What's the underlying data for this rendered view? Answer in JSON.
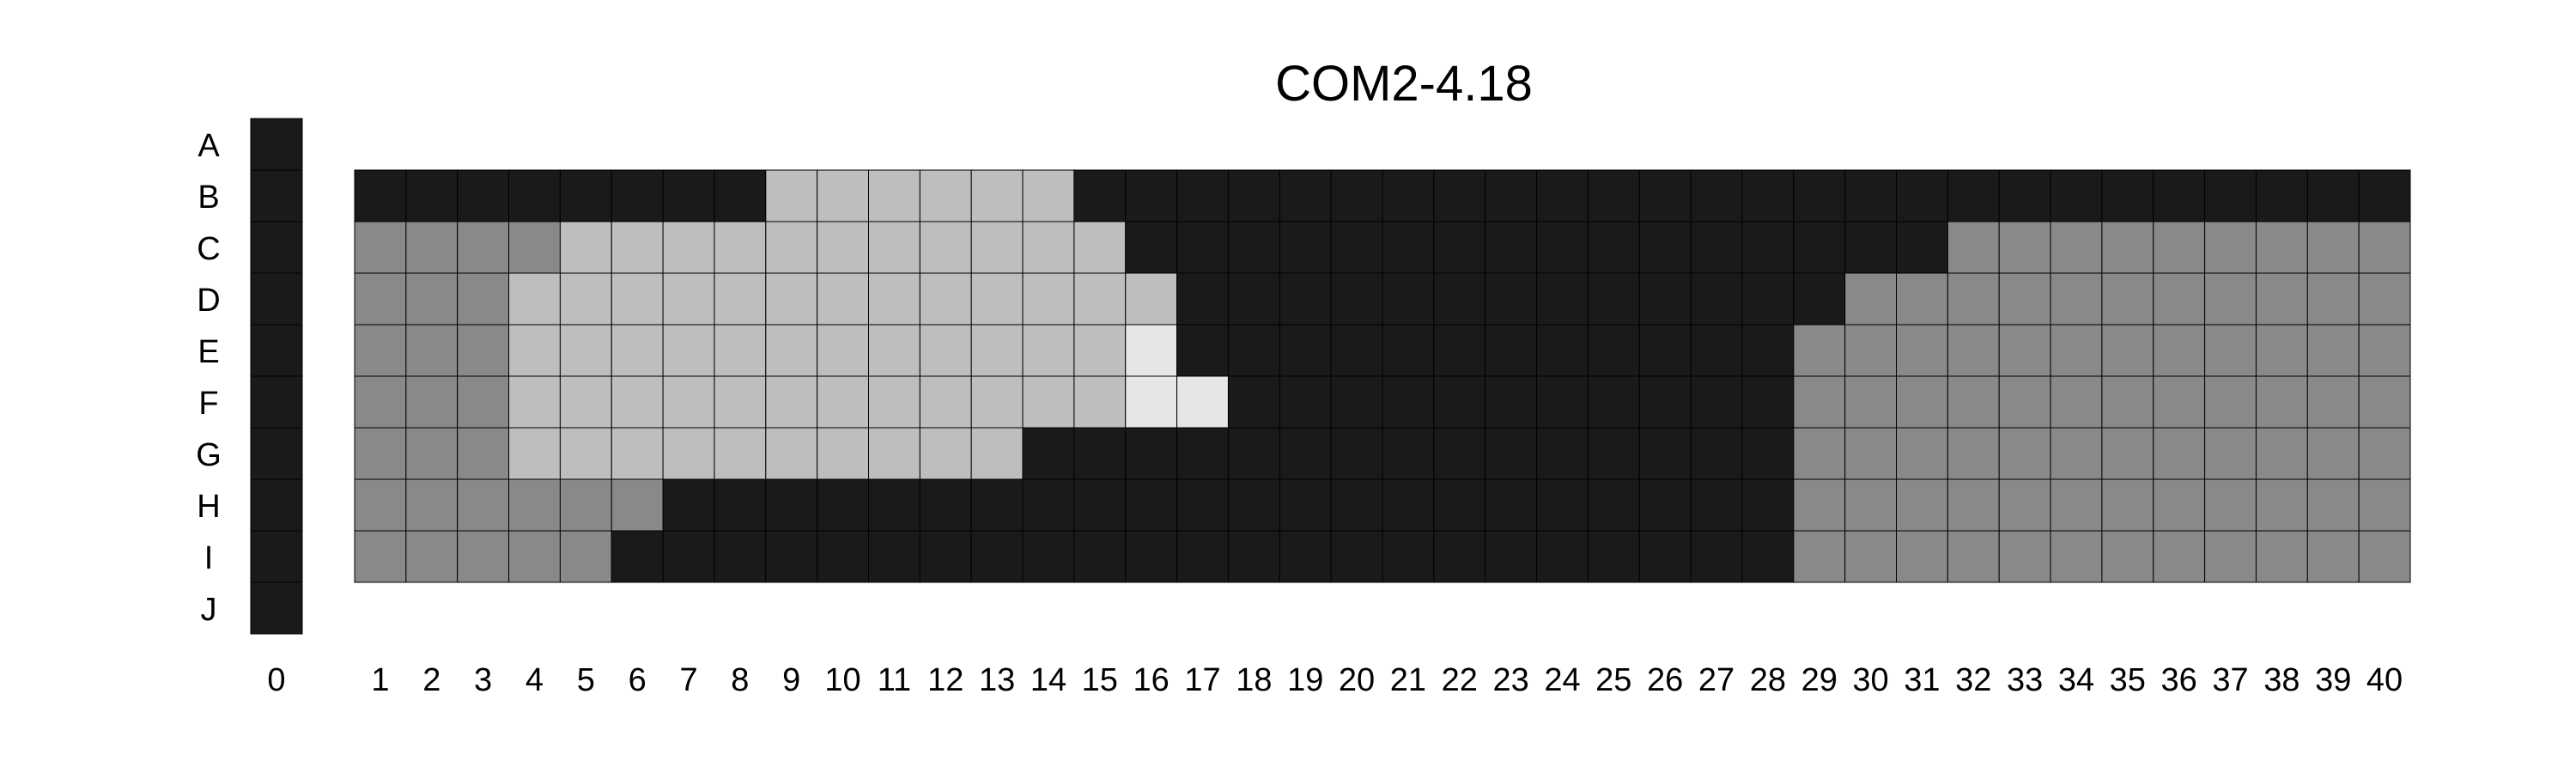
{
  "chart_data": {
    "type": "heatmap",
    "title": "COM2-4.18",
    "row_labels": [
      "A",
      "B",
      "C",
      "D",
      "E",
      "F",
      "G",
      "H",
      "I",
      "J"
    ],
    "column_labels": [
      "0",
      "1",
      "2",
      "3",
      "4",
      "5",
      "6",
      "7",
      "8",
      "9",
      "10",
      "11",
      "12",
      "13",
      "14",
      "15",
      "16",
      "17",
      "18",
      "19",
      "20",
      "21",
      "22",
      "23",
      "24",
      "25",
      "26",
      "27",
      "28",
      "29",
      "30",
      "31",
      "32",
      "33",
      "34",
      "35",
      "36",
      "37",
      "38",
      "39",
      "40"
    ],
    "colors": {
      "1": "#1a1a1a",
      "2": "#898989",
      "3": "#bebebe",
      "4": "#e6e6e6"
    },
    "column_0": [
      1,
      1,
      1,
      1,
      1,
      1,
      1,
      1,
      1,
      1
    ],
    "grid_rows": [
      "B",
      "C",
      "D",
      "E",
      "F",
      "G",
      "H",
      "I"
    ],
    "grid_columns_start": 1,
    "grid": [
      [
        1,
        1,
        1,
        1,
        1,
        1,
        1,
        1,
        3,
        3,
        3,
        3,
        3,
        3,
        1,
        1,
        1,
        1,
        1,
        1,
        1,
        1,
        1,
        1,
        1,
        1,
        1,
        1,
        1,
        1,
        1,
        1,
        1,
        1,
        1,
        1,
        1,
        1,
        1,
        1
      ],
      [
        2,
        2,
        2,
        2,
        3,
        3,
        3,
        3,
        3,
        3,
        3,
        3,
        3,
        3,
        3,
        1,
        1,
        1,
        1,
        1,
        1,
        1,
        1,
        1,
        1,
        1,
        1,
        1,
        1,
        1,
        1,
        2,
        2,
        2,
        2,
        2,
        2,
        2,
        2,
        2
      ],
      [
        2,
        2,
        2,
        3,
        3,
        3,
        3,
        3,
        3,
        3,
        3,
        3,
        3,
        3,
        3,
        3,
        1,
        1,
        1,
        1,
        1,
        1,
        1,
        1,
        1,
        1,
        1,
        1,
        1,
        2,
        2,
        2,
        2,
        2,
        2,
        2,
        2,
        2,
        2,
        2
      ],
      [
        2,
        2,
        2,
        3,
        3,
        3,
        3,
        3,
        3,
        3,
        3,
        3,
        3,
        3,
        3,
        4,
        1,
        1,
        1,
        1,
        1,
        1,
        1,
        1,
        1,
        1,
        1,
        1,
        2,
        2,
        2,
        2,
        2,
        2,
        2,
        2,
        2,
        2,
        2,
        2
      ],
      [
        2,
        2,
        2,
        3,
        3,
        3,
        3,
        3,
        3,
        3,
        3,
        3,
        3,
        3,
        3,
        4,
        4,
        1,
        1,
        1,
        1,
        1,
        1,
        1,
        1,
        1,
        1,
        1,
        2,
        2,
        2,
        2,
        2,
        2,
        2,
        2,
        2,
        2,
        2,
        2
      ],
      [
        2,
        2,
        2,
        3,
        3,
        3,
        3,
        3,
        3,
        3,
        3,
        3,
        3,
        1,
        1,
        1,
        1,
        1,
        1,
        1,
        1,
        1,
        1,
        1,
        1,
        1,
        1,
        1,
        2,
        2,
        2,
        2,
        2,
        2,
        2,
        2,
        2,
        2,
        2,
        2
      ],
      [
        2,
        2,
        2,
        2,
        2,
        2,
        1,
        1,
        1,
        1,
        1,
        1,
        1,
        1,
        1,
        1,
        1,
        1,
        1,
        1,
        1,
        1,
        1,
        1,
        1,
        1,
        1,
        1,
        2,
        2,
        2,
        2,
        2,
        2,
        2,
        2,
        2,
        2,
        2,
        2
      ],
      [
        2,
        2,
        2,
        2,
        2,
        1,
        1,
        1,
        1,
        1,
        1,
        1,
        1,
        1,
        1,
        1,
        1,
        1,
        1,
        1,
        1,
        1,
        1,
        1,
        1,
        1,
        1,
        1,
        2,
        2,
        2,
        2,
        2,
        2,
        2,
        2,
        2,
        2,
        2,
        2
      ]
    ]
  }
}
